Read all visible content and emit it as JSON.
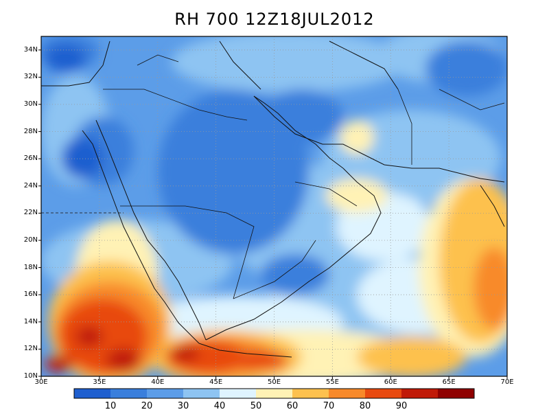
{
  "title": "RH 700  12Z18JUL2012",
  "map": {
    "lon_min": 30,
    "lon_max": 70,
    "lat_min": 10,
    "lat_max": 35,
    "lat_labels": [
      "34N",
      "32N",
      "30N",
      "28N",
      "26N",
      "24N",
      "22N",
      "20N",
      "18N",
      "16N",
      "14N",
      "12N",
      "10N"
    ],
    "lat_values": [
      34,
      32,
      30,
      28,
      26,
      24,
      22,
      20,
      18,
      16,
      14,
      12,
      10
    ],
    "lon_labels": [
      "30E",
      "35E",
      "40E",
      "45E",
      "50E",
      "55E",
      "60E",
      "65E",
      "70E"
    ],
    "lon_values": [
      30,
      35,
      40,
      45,
      50,
      55,
      60,
      65,
      70
    ],
    "grid": true
  },
  "colorbar": {
    "colors": [
      "#1f5fcf",
      "#3a7fdc",
      "#5c9de8",
      "#8ec4f2",
      "#dff4ff",
      "#fff2b5",
      "#fdc14e",
      "#f88a2a",
      "#e84a10",
      "#c01a08",
      "#8f0000"
    ],
    "labels": [
      "10",
      "20",
      "30",
      "40",
      "50",
      "60",
      "70",
      "80",
      "90"
    ]
  }
}
